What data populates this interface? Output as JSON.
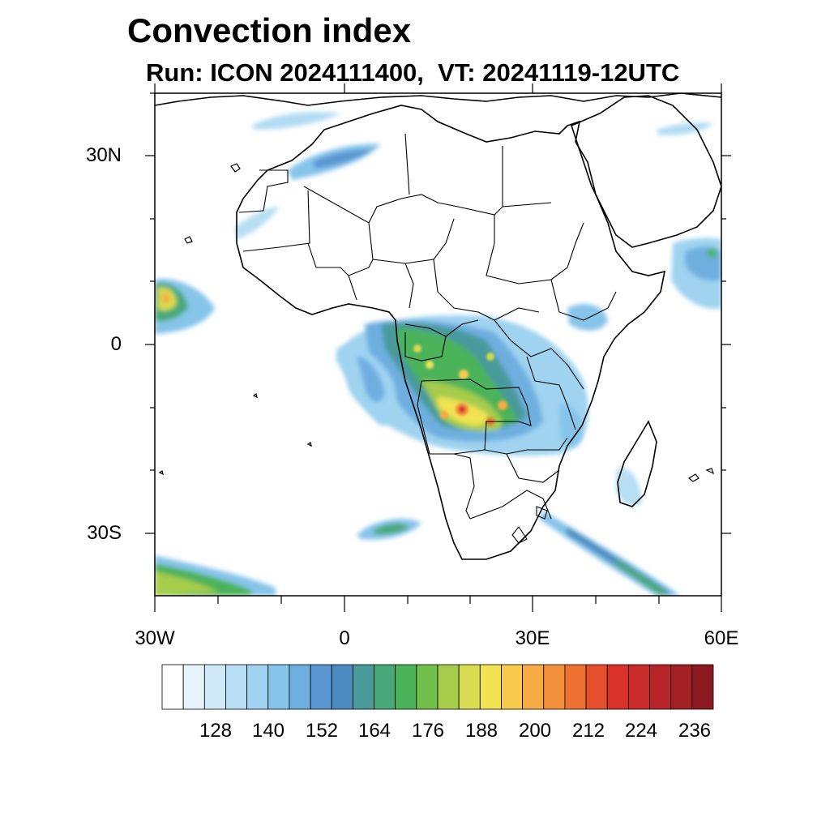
{
  "title": "Convection index",
  "subtitle": "Run: ICON 2024111400,  VT: 20241119-12UTC",
  "axes": {
    "lat_labels": [
      "30N",
      "0",
      "30S"
    ],
    "lon_labels": [
      "30W",
      "0",
      "30E",
      "60E"
    ]
  },
  "colorbar": {
    "colors": [
      "#ffffff",
      "#e8f4fc",
      "#cfe9f7",
      "#b7def3",
      "#9fd3f0",
      "#86c4ea",
      "#6eafe0",
      "#5a96d2",
      "#4b8bbf",
      "#4a9a9b",
      "#48a878",
      "#4cb35a",
      "#72bf4b",
      "#a6cc4c",
      "#d8dc50",
      "#f1e352",
      "#f8cb4e",
      "#f6ac45",
      "#f3903c",
      "#ee7132",
      "#e5502d",
      "#da3129",
      "#c92a2a",
      "#b72528",
      "#a21f25",
      "#8a1a1f"
    ],
    "tick_labels": [
      "128",
      "140",
      "152",
      "164",
      "176",
      "188",
      "200",
      "212",
      "224",
      "236"
    ]
  }
}
